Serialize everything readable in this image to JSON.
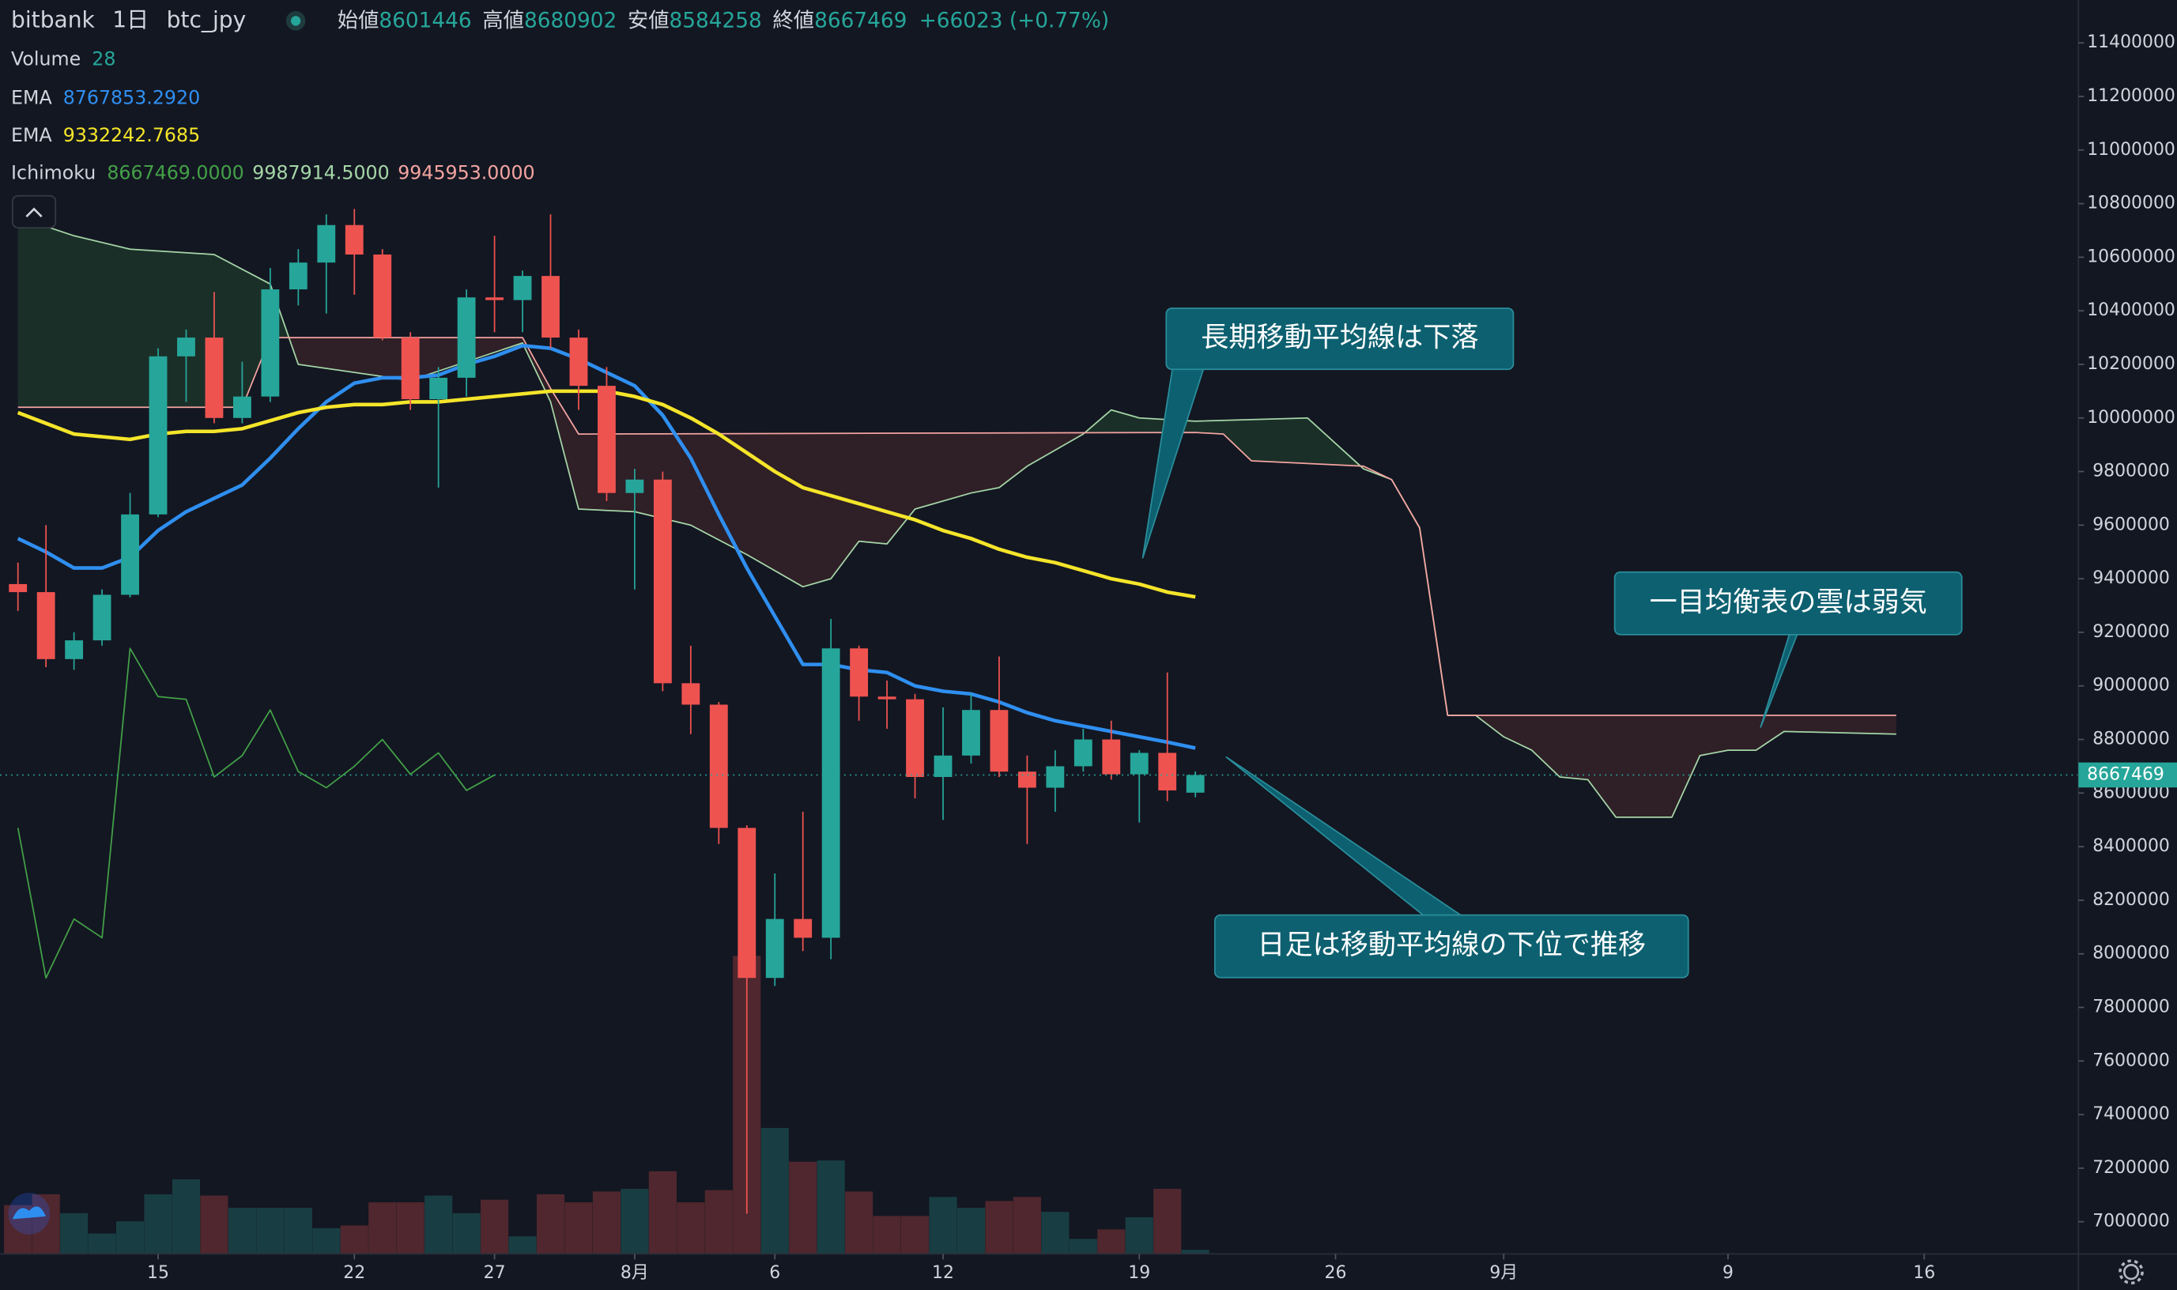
{
  "header": {
    "symbol": "bitbank",
    "interval": "1日",
    "pair": "btc_jpy",
    "open_label": "始値",
    "high_label": "高値",
    "low_label": "安値",
    "close_label": "終値",
    "change": "+66023 (+0.77%)"
  },
  "chart_data": {
    "type": "candlestick",
    "x": [
      10,
      11,
      12,
      13,
      14,
      15,
      16,
      17,
      18,
      19,
      20,
      21,
      22,
      23,
      24,
      25,
      26,
      27,
      28,
      29,
      30,
      31,
      32,
      33,
      34,
      35,
      36,
      37,
      38,
      39,
      40,
      41,
      42,
      43,
      44,
      45,
      46,
      47,
      48,
      49,
      50,
      51,
      52
    ],
    "open": [
      9380000,
      9350000,
      9100000,
      9170000,
      9340000,
      9640000,
      10230000,
      10300000,
      10000000,
      10080000,
      10480000,
      10580000,
      10720000,
      10610000,
      10300000,
      10070000,
      10150000,
      10450000,
      10440000,
      10530000,
      10300000,
      10120000,
      9720000,
      9770000,
      9010000,
      8930000,
      8470000,
      7910000,
      8130000,
      8060000,
      9140000,
      8960000,
      8950000,
      8660000,
      8740000,
      8910000,
      8680000,
      8620000,
      8700000,
      8800000,
      8670000,
      8750000,
      8601446
    ],
    "high": [
      9460000,
      9600000,
      9200000,
      9360000,
      9720000,
      10260000,
      10330000,
      10470000,
      10210000,
      10560000,
      10630000,
      10760000,
      10780000,
      10630000,
      10320000,
      10190000,
      10480000,
      10680000,
      10550000,
      10760000,
      10330000,
      10190000,
      9810000,
      9800000,
      9150000,
      8940000,
      8480000,
      8300000,
      8530000,
      9250000,
      9150000,
      9020000,
      8970000,
      8920000,
      8970000,
      9110000,
      8740000,
      8760000,
      8840000,
      8870000,
      8760000,
      9050000,
      8680902
    ],
    "low": [
      9280000,
      9070000,
      9060000,
      9150000,
      9330000,
      9630000,
      10060000,
      9980000,
      9980000,
      10060000,
      10420000,
      10390000,
      10460000,
      10290000,
      10030000,
      9740000,
      10080000,
      10320000,
      10320000,
      10260000,
      10030000,
      9690000,
      9360000,
      8980000,
      8820000,
      8410000,
      7030000,
      7880000,
      8010000,
      7980000,
      8870000,
      8840000,
      8580000,
      8500000,
      8710000,
      8660000,
      8410000,
      8530000,
      8680000,
      8650000,
      8490000,
      8570000,
      8584258
    ],
    "close": [
      9350000,
      9100000,
      9170000,
      9340000,
      9640000,
      10230000,
      10300000,
      10000000,
      10080000,
      10480000,
      10580000,
      10720000,
      10610000,
      10300000,
      10070000,
      10150000,
      10450000,
      10440000,
      10530000,
      10300000,
      10120000,
      9720000,
      9770000,
      9010000,
      8930000,
      8470000,
      7910000,
      8130000,
      8060000,
      9140000,
      8960000,
      8950000,
      8660000,
      8740000,
      8910000,
      8680000,
      8620000,
      8700000,
      8800000,
      8670000,
      8750000,
      8610000,
      8667469
    ],
    "up_color": "#26a69a",
    "down_color": "#ef5350",
    "xlim": [
      9.36,
      83.5
    ],
    "xticks": [
      {
        "value": 15,
        "label": "15"
      },
      {
        "value": 22,
        "label": "22"
      },
      {
        "value": 27,
        "label": "27"
      },
      {
        "value": 32,
        "label": "8月"
      },
      {
        "value": 37,
        "label": "6"
      },
      {
        "value": 43,
        "label": "12"
      },
      {
        "value": 50,
        "label": "19"
      },
      {
        "value": 57,
        "label": "26"
      },
      {
        "value": 63,
        "label": "9月"
      },
      {
        "value": 71,
        "label": "9"
      },
      {
        "value": 78,
        "label": "16"
      }
    ],
    "ylim": [
      6880000,
      11560000
    ],
    "yticks": [
      7000000,
      7200000,
      7400000,
      7600000,
      7800000,
      8000000,
      8200000,
      8400000,
      8600000,
      8800000,
      9000000,
      9200000,
      9400000,
      9600000,
      9800000,
      10000000,
      10200000,
      10400000,
      10600000,
      10800000,
      11000000,
      11200000,
      11400000
    ],
    "volume": {
      "name": "Volume",
      "vlim": [
        0,
        8200
      ],
      "values": [
        333,
        407,
        278,
        139,
        222,
        407,
        509,
        398,
        315,
        315,
        315,
        176,
        194,
        352,
        352,
        398,
        278,
        370,
        120,
        407,
        352,
        426,
        444,
        564,
        352,
        435,
        2035,
        860,
        629,
        638,
        426,
        259,
        259,
        389,
        315,
        361,
        389,
        287,
        102,
        167,
        250,
        444,
        28
      ]
    },
    "series": [
      {
        "name": "EMA",
        "color": "#2f8ff0",
        "legend_label": "8767853.2920",
        "values": [
          9550000,
          9500000,
          9440000,
          9440000,
          9480000,
          9580000,
          9650000,
          9700000,
          9750000,
          9850000,
          9960000,
          10060000,
          10130000,
          10150000,
          10150000,
          10160000,
          10200000,
          10230000,
          10270000,
          10260000,
          10220000,
          10170000,
          10120000,
          10010000,
          9850000,
          9640000,
          9440000,
          9260000,
          9080000,
          9080000,
          9060000,
          9050000,
          9000000,
          8980000,
          8970000,
          8940000,
          8900000,
          8870000,
          8850000,
          8830000,
          8810000,
          8790000,
          8767853.292
        ]
      },
      {
        "name": "EMA",
        "color": "#f5e52a",
        "legend_label": "9332242.7685",
        "values": [
          10020000,
          9980000,
          9940000,
          9930000,
          9920000,
          9940000,
          9950000,
          9950000,
          9960000,
          9990000,
          10020000,
          10040000,
          10050000,
          10050000,
          10060000,
          10060000,
          10070000,
          10080000,
          10090000,
          10100000,
          10100000,
          10100000,
          10080000,
          10050000,
          10000000,
          9940000,
          9870000,
          9800000,
          9740000,
          9710000,
          9680000,
          9650000,
          9620000,
          9580000,
          9550000,
          9510000,
          9480000,
          9460000,
          9430000,
          9400000,
          9380000,
          9350000,
          9332242.7685
        ]
      }
    ],
    "ichimoku": {
      "name": "Ichimoku",
      "lines": [
        {
          "color": "#43a047",
          "legend_label": "8667469.0000",
          "x": [
            10,
            11,
            12,
            13,
            14,
            15,
            16,
            17,
            18,
            19,
            20,
            21,
            22,
            23,
            24,
            25,
            26,
            27
          ],
          "values": [
            8470000,
            7910000,
            8130000,
            8060000,
            9140000,
            8960000,
            8950000,
            8660000,
            8740000,
            8910000,
            8680000,
            8620000,
            8700000,
            8800000,
            8670000,
            8750000,
            8610000,
            8667469
          ]
        },
        {
          "color": "#a5d6a7",
          "legend_label": "9987914.5000",
          "x": [
            10,
            12,
            14,
            17,
            19,
            20,
            24,
            28,
            29,
            30,
            32,
            34,
            36,
            38,
            39,
            40,
            41,
            42,
            44,
            45,
            46,
            48,
            49,
            50,
            52,
            56,
            58,
            59,
            60,
            61,
            62,
            63,
            64,
            65,
            66,
            67,
            69,
            70,
            71,
            72,
            73,
            77
          ],
          "values": [
            10750000,
            10680000,
            10630000,
            10610000,
            10500000,
            10200000,
            10140000,
            10280000,
            10060000,
            9660000,
            9650000,
            9600000,
            9490000,
            9370000,
            9400000,
            9540000,
            9530000,
            9660000,
            9720000,
            9740000,
            9820000,
            9940000,
            10030000,
            10000000,
            9987914.5,
            10000000,
            9810000,
            9770000,
            9590000,
            8890000,
            8890000,
            8810000,
            8760000,
            8660000,
            8650000,
            8510000,
            8510000,
            8740000,
            8760000,
            8760000,
            8830000,
            8820000
          ]
        },
        {
          "color": "#f4a4a0",
          "legend_label": "9945953.0000",
          "x": [
            10,
            18,
            19,
            28,
            29,
            30,
            52,
            53,
            54,
            58,
            59,
            60,
            61,
            77
          ],
          "values": [
            10040000,
            10040000,
            10300000,
            10300000,
            10110000,
            9940000,
            9945953,
            9940000,
            9840000,
            9820000,
            9770000,
            9590000,
            8890000,
            8890000
          ]
        }
      ]
    },
    "annotations": [
      "長期移動平均線は下落",
      "一目均衡表の雲は弱気",
      "日足は移動平均線の下位で推移"
    ]
  }
}
